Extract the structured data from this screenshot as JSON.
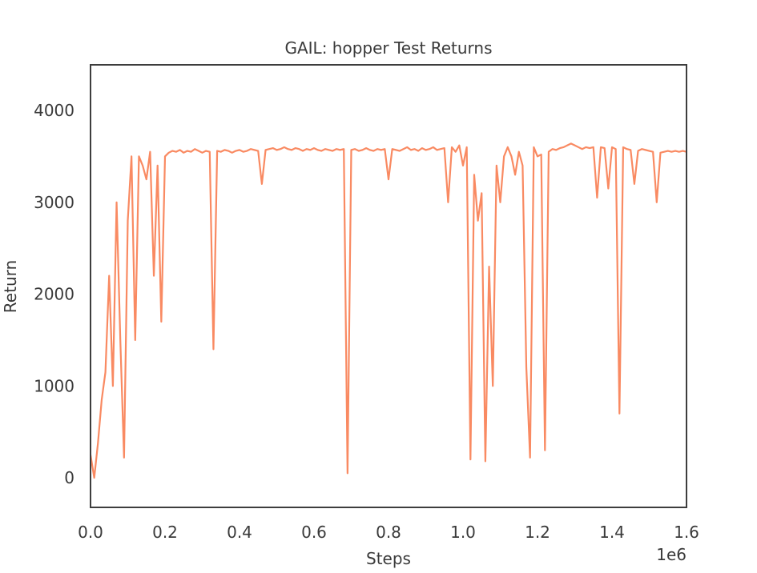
{
  "chart_data": {
    "type": "line",
    "title": "GAIL: hopper Test Returns",
    "xlabel": "Steps",
    "ylabel": "Return",
    "x_offset_label": "1e6",
    "color": "#f98a62",
    "grid": false,
    "xlim": [
      0,
      1.6
    ],
    "ylim": [
      -322,
      4497
    ],
    "xticks": [
      {
        "value": 0,
        "label": "0.0"
      },
      0.2,
      0.4,
      0.6,
      0.8,
      {
        "value": 1,
        "label": "1.0"
      },
      1.2,
      1.4,
      1.6
    ],
    "yticks": [
      0,
      1000,
      2000,
      3000,
      4000
    ],
    "x": [
      0,
      0.01,
      0.02,
      0.03,
      0.04,
      0.05,
      0.06,
      0.07,
      0.08,
      0.09,
      0.1,
      0.11,
      0.12,
      0.13,
      0.14,
      0.15,
      0.16,
      0.17,
      0.18,
      0.19,
      0.2,
      0.21,
      0.22,
      0.23,
      0.24,
      0.25,
      0.26,
      0.27,
      0.28,
      0.29,
      0.3,
      0.31,
      0.32,
      0.33,
      0.34,
      0.35,
      0.36,
      0.37,
      0.38,
      0.39,
      0.4,
      0.41,
      0.42,
      0.43,
      0.44,
      0.45,
      0.46,
      0.47,
      0.48,
      0.49,
      0.5,
      0.51,
      0.52,
      0.53,
      0.54,
      0.55,
      0.56,
      0.57,
      0.58,
      0.59,
      0.6,
      0.61,
      0.62,
      0.63,
      0.64,
      0.65,
      0.66,
      0.67,
      0.68,
      0.69,
      0.7,
      0.71,
      0.72,
      0.73,
      0.74,
      0.75,
      0.76,
      0.77,
      0.78,
      0.79,
      0.8,
      0.81,
      0.82,
      0.83,
      0.84,
      0.85,
      0.86,
      0.87,
      0.88,
      0.89,
      0.9,
      0.91,
      0.92,
      0.93,
      0.94,
      0.95,
      0.96,
      0.97,
      0.98,
      0.99,
      1,
      1.01,
      1.02,
      1.03,
      1.04,
      1.05,
      1.06,
      1.07,
      1.08,
      1.09,
      1.1,
      1.11,
      1.12,
      1.13,
      1.14,
      1.15,
      1.16,
      1.17,
      1.18,
      1.19,
      1.2,
      1.21,
      1.22,
      1.23,
      1.24,
      1.25,
      1.26,
      1.27,
      1.28,
      1.29,
      1.3,
      1.31,
      1.32,
      1.33,
      1.34,
      1.35,
      1.36,
      1.37,
      1.38,
      1.39,
      1.4,
      1.41,
      1.42,
      1.43,
      1.44,
      1.45,
      1.46,
      1.47,
      1.48,
      1.49,
      1.5,
      1.51,
      1.52,
      1.53,
      1.54,
      1.55,
      1.56,
      1.57,
      1.58,
      1.59,
      1.6
    ],
    "values": [
      250,
      0,
      380,
      850,
      1150,
      2200,
      1000,
      3000,
      1500,
      220,
      2800,
      3500,
      1500,
      3500,
      3400,
      3250,
      3550,
      2200,
      3400,
      1700,
      3500,
      3540,
      3560,
      3550,
      3570,
      3540,
      3560,
      3550,
      3580,
      3560,
      3540,
      3560,
      3550,
      1400,
      3560,
      3550,
      3570,
      3560,
      3540,
      3560,
      3570,
      3550,
      3560,
      3580,
      3570,
      3560,
      3200,
      3570,
      3580,
      3590,
      3570,
      3580,
      3600,
      3580,
      3570,
      3590,
      3580,
      3560,
      3580,
      3570,
      3590,
      3570,
      3560,
      3580,
      3570,
      3560,
      3580,
      3570,
      3580,
      50,
      3570,
      3580,
      3560,
      3570,
      3590,
      3570,
      3560,
      3580,
      3570,
      3580,
      3250,
      3580,
      3570,
      3560,
      3580,
      3600,
      3570,
      3580,
      3560,
      3590,
      3570,
      3580,
      3600,
      3570,
      3580,
      3590,
      3000,
      3600,
      3550,
      3620,
      3400,
      3600,
      200,
      3300,
      2800,
      3100,
      180,
      2300,
      1000,
      3400,
      3000,
      3500,
      3600,
      3500,
      3300,
      3550,
      3400,
      1200,
      220,
      3600,
      3500,
      3520,
      300,
      3550,
      3580,
      3570,
      3590,
      3600,
      3620,
      3640,
      3620,
      3600,
      3580,
      3600,
      3590,
      3600,
      3050,
      3600,
      3590,
      3150,
      3600,
      3580,
      700,
      3600,
      3580,
      3570,
      3200,
      3560,
      3580,
      3570,
      3560,
      3550,
      3000,
      3540,
      3550,
      3560,
      3550,
      3560,
      3550,
      3560,
      3550
    ]
  }
}
